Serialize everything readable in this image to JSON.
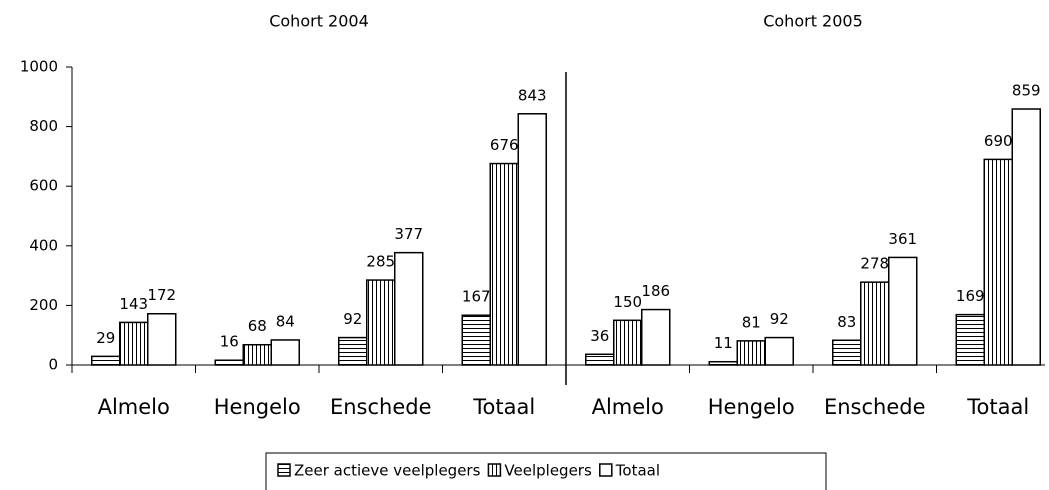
{
  "chart_data": {
    "type": "bar",
    "group_titles": [
      "Cohort 2004",
      "Cohort 2005"
    ],
    "categories": [
      "Almelo",
      "Hengelo",
      "Enschede",
      "Totaal",
      "Almelo",
      "Hengelo",
      "Enschede",
      "Totaal"
    ],
    "series": [
      {
        "name": "Zeer actieve veelplegers",
        "color": "#ffffff",
        "pattern": "horizontal",
        "values": [
          29,
          16,
          92,
          167,
          36,
          11,
          83,
          169
        ]
      },
      {
        "name": "Veelplegers",
        "color": "#ffffff",
        "pattern": "vertical",
        "values": [
          143,
          68,
          285,
          676,
          150,
          81,
          278,
          690
        ]
      },
      {
        "name": "Totaal",
        "color": "#ffffff",
        "pattern": "none",
        "values": [
          172,
          84,
          377,
          843,
          186,
          92,
          361,
          859
        ]
      }
    ],
    "ylim": [
      0,
      1000
    ],
    "yticks": [
      0,
      200,
      400,
      600,
      800,
      1000
    ],
    "grid": false,
    "legend": "bottom"
  }
}
